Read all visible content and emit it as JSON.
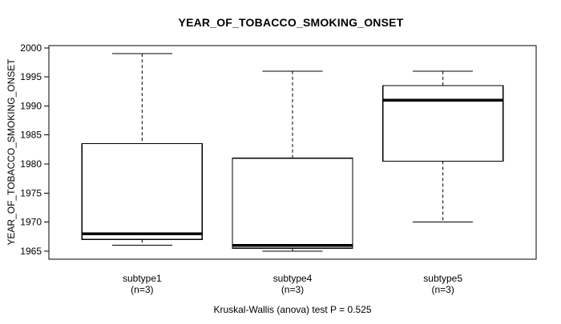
{
  "chart_data": {
    "type": "boxplot",
    "title": "YEAR_OF_TOBACCO_SMOKING_ONSET",
    "ylabel": "YEAR_OF_TOBACCO_SMOKING_ONSET",
    "xlabel": "",
    "caption": "Kruskal-Wallis (anova) test P = 0.525",
    "ylim": [
      1963.6,
      2000.4
    ],
    "yticks": [
      1965,
      1970,
      1975,
      1980,
      1985,
      1990,
      1995,
      2000
    ],
    "grid": false,
    "legend": "none",
    "colors": {
      "stroke": "#000000",
      "box_fill": "#ffffff",
      "background": "#ffffff"
    },
    "groups": [
      {
        "label": "subtype1",
        "n_label": "(n=3)",
        "n": 3,
        "whisker_low": 1966,
        "q1": 1967,
        "median": 1968,
        "q3": 1983.5,
        "whisker_high": 1999
      },
      {
        "label": "subtype4",
        "n_label": "(n=3)",
        "n": 3,
        "whisker_low": 1965,
        "q1": 1965.5,
        "median": 1966,
        "q3": 1981,
        "whisker_high": 1996
      },
      {
        "label": "subtype5",
        "n_label": "(n=3)",
        "n": 3,
        "whisker_low": 1970,
        "q1": 1980.5,
        "median": 1991,
        "q3": 1993.5,
        "whisker_high": 1996
      }
    ]
  }
}
